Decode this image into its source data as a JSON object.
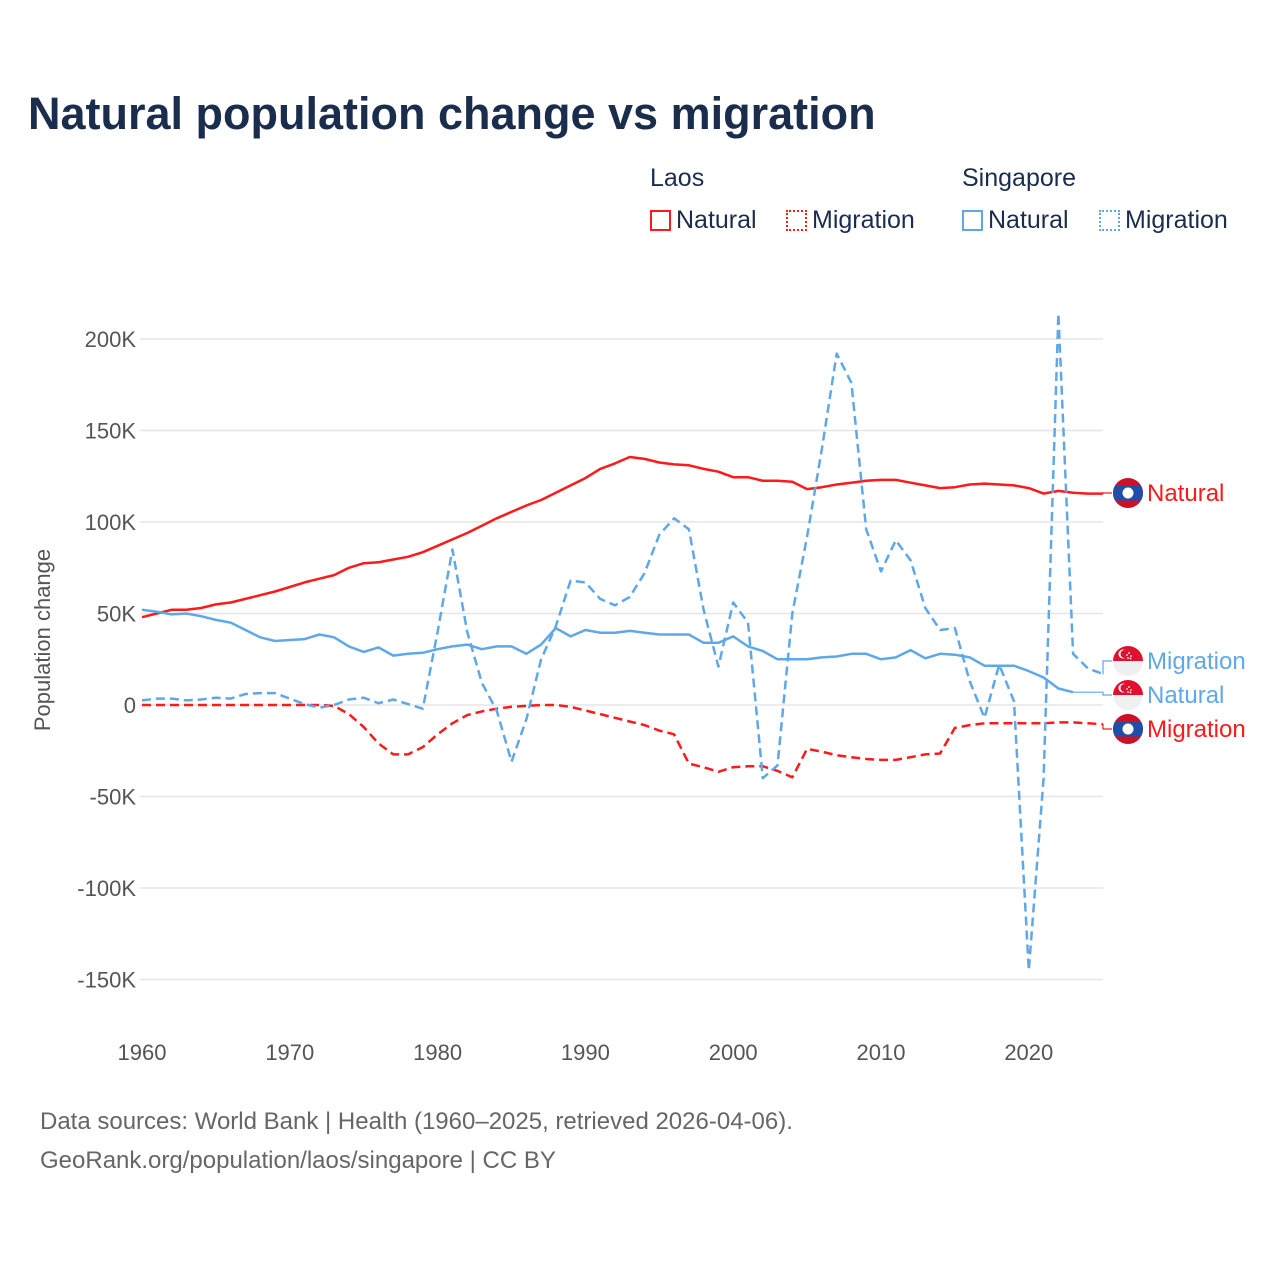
{
  "title": "Natural population change vs migration",
  "legend": {
    "groups": [
      {
        "name": "Laos",
        "items": [
          "Natural",
          "Migration"
        ]
      },
      {
        "name": "Singapore",
        "items": [
          "Natural",
          "Migration"
        ]
      }
    ]
  },
  "colors": {
    "laos": "#ff1a1a",
    "singapore": "#5fa8e8"
  },
  "footer": {
    "line1": "Data sources: World Bank | Health (1960–2025, retrieved 2026-04-06).",
    "line2": "GeoRank.org/population/laos/singapore | CC BY"
  },
  "chart_data": {
    "type": "line",
    "title": "Natural population change vs migration",
    "xlabel": "",
    "ylabel": "Population change",
    "xlim": [
      1960,
      2025
    ],
    "ylim": [
      -165000,
      215000
    ],
    "x_ticks": [
      1960,
      1970,
      1980,
      1990,
      2000,
      2010,
      2020
    ],
    "x_tick_labels": [
      "1960",
      "1970",
      "1980",
      "1990",
      "2000",
      "2010",
      "2020"
    ],
    "y_ticks": [
      -150000,
      -100000,
      -50000,
      0,
      50000,
      100000,
      150000,
      200000
    ],
    "y_tick_labels": [
      "-150K",
      "-100K",
      "-50K",
      "0",
      "50K",
      "100K",
      "150K",
      "200K"
    ],
    "grid": true,
    "legend_position": "top-right",
    "start_year": 1960,
    "series": [
      {
        "name": "Laos Natural",
        "label": "Natural",
        "country": "Laos",
        "color": "#ff1a1a",
        "dash": false,
        "values_k": [
          48,
          50,
          52,
          52,
          53,
          55,
          56,
          58,
          60,
          62,
          64.5,
          67,
          69,
          71,
          75,
          77.5,
          78,
          79.5,
          81,
          83.5,
          87,
          90.5,
          94,
          98,
          102,
          105.5,
          109,
          112,
          116,
          120,
          124,
          129,
          132,
          135.5,
          134.5,
          132.5,
          131.5,
          131,
          129,
          127.5,
          124.5,
          124.5,
          122.5,
          122.5,
          122,
          118,
          119,
          120.5,
          121.5,
          122.5,
          123,
          123,
          121.5,
          120,
          118.5,
          119,
          120.5,
          121,
          120.5,
          120,
          118.5,
          115.5,
          117,
          116,
          115.5,
          115.5
        ]
      },
      {
        "name": "Laos Migration",
        "label": "Migration",
        "country": "Laos",
        "color": "#ff1a1a",
        "dash": true,
        "values_k": [
          0,
          0,
          0,
          0,
          0,
          0,
          0,
          0,
          0,
          0,
          0,
          0,
          0,
          -0.5,
          -5,
          -12,
          -21,
          -27,
          -27,
          -23,
          -16,
          -10,
          -5.5,
          -3.5,
          -2,
          -1,
          -0.5,
          0,
          0,
          -1,
          -3,
          -5,
          -7,
          -9,
          -11,
          -14,
          -16,
          -32,
          -34,
          -36.5,
          -34,
          -33.5,
          -33.5,
          -36,
          -39.5,
          -24,
          -25.5,
          -27.5,
          -28.5,
          -29.5,
          -30,
          -30,
          -28.5,
          -27,
          -26.5,
          -12.5,
          -11,
          -10,
          -10,
          -10,
          -10,
          -10,
          -9.5,
          -9.5,
          -10,
          -10.5
        ]
      },
      {
        "name": "Singapore Natural",
        "label": "Natural",
        "country": "Singapore",
        "color": "#5fa8e8",
        "dash": false,
        "values_k": [
          52,
          51,
          49.5,
          50,
          48.5,
          46.5,
          45,
          41,
          37,
          35,
          35.5,
          36,
          38.5,
          37,
          32,
          29,
          31.5,
          27,
          28,
          28.5,
          30.5,
          32,
          33,
          30.5,
          32,
          32,
          28,
          33,
          42,
          37.5,
          41,
          39.5,
          39.5,
          40.5,
          39.5,
          38.5,
          38.5,
          38.5,
          34,
          34,
          37.5,
          32,
          29.5,
          25,
          25,
          25,
          26,
          26.5,
          28,
          28,
          25,
          26,
          30,
          25.5,
          28,
          27.5,
          26,
          21.5,
          21.5,
          21.5,
          18.5,
          15,
          9,
          7
        ]
      },
      {
        "name": "Singapore Migration",
        "label": "Migration",
        "country": "Singapore",
        "color": "#5fa8e8",
        "dash": true,
        "values_k": [
          2.5,
          3.5,
          3.5,
          2.5,
          3,
          4,
          3.5,
          6,
          6.5,
          6.5,
          3.5,
          0.5,
          -1.5,
          0,
          3,
          4,
          1,
          3,
          0.5,
          -2,
          40,
          85,
          40,
          12,
          -3,
          -31,
          -8,
          25,
          43,
          68,
          67,
          58,
          54.5,
          59,
          72,
          93,
          102,
          96,
          52,
          21,
          56,
          45,
          -40,
          -33,
          50,
          92,
          140,
          192,
          176,
          96,
          73,
          90,
          79,
          53,
          41,
          42,
          13,
          -7,
          22,
          2,
          -145,
          -40,
          214,
          28,
          20,
          17
        ]
      }
    ]
  }
}
